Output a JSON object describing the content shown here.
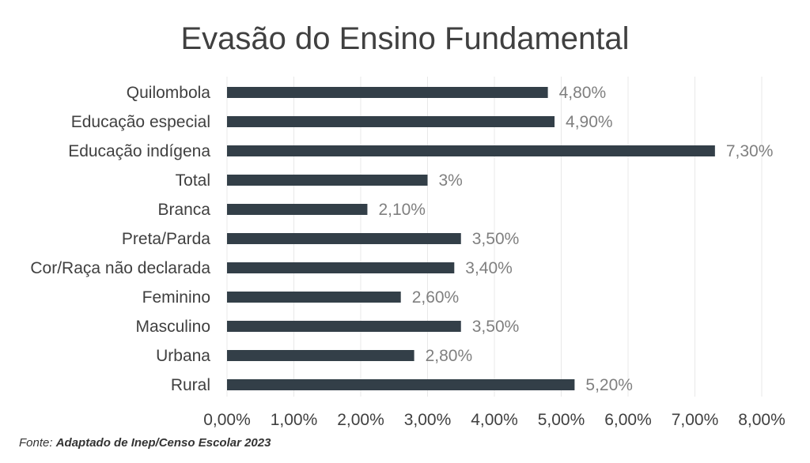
{
  "chart_data": {
    "type": "bar",
    "orientation": "horizontal",
    "title": "Evasão do Ensino Fundamental",
    "categories": [
      "Quilombola",
      "Educação especial",
      "Educação indígena",
      "Total",
      "Branca",
      "Preta/Parda",
      "Cor/Raça não declarada",
      "Feminino",
      "Masculino",
      "Urbana",
      "Rural"
    ],
    "values": [
      4.8,
      4.9,
      7.3,
      3.0,
      2.1,
      3.5,
      3.4,
      2.6,
      3.5,
      2.8,
      5.2
    ],
    "value_labels": [
      "4,80%",
      "4,90%",
      "7,30%",
      "3%",
      "2,10%",
      "3,50%",
      "3,40%",
      "2,60%",
      "3,50%",
      "2,80%",
      "5,20%"
    ],
    "xlim": [
      0,
      8
    ],
    "x_ticks": [
      0,
      1,
      2,
      3,
      4,
      5,
      6,
      7,
      8
    ],
    "x_tick_labels": [
      "0,00%",
      "1,00%",
      "2,00%",
      "3,00%",
      "4,00%",
      "5,00%",
      "6,00%",
      "7,00%",
      "8,00%"
    ],
    "xlabel": "",
    "ylabel": "",
    "grid": true,
    "bar_color": "#333f48",
    "gridline_color": "#e8e8e8"
  },
  "source": {
    "prefix": "Fonte:",
    "text": "Adaptado de Inep/Censo Escolar 2023"
  }
}
